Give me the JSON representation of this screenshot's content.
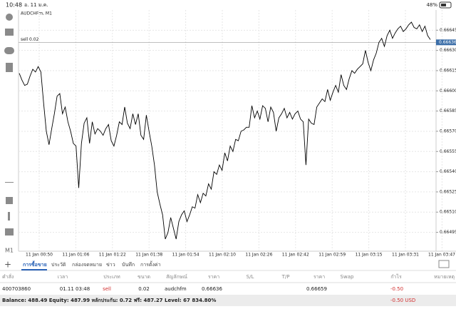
{
  "status_bar": {
    "time": "10:48",
    "date": "อ. 11 ม.ค.",
    "battery": "48%"
  },
  "timeframe": "M1",
  "chart_data": {
    "type": "line",
    "title": "AUDCHFm, M1",
    "color": "#000000",
    "x_labels": [
      "11 Jan 00:50",
      "11 Jan 01:06",
      "11 Jan 01:22",
      "11 Jan 01:38",
      "11 Jan 01:54",
      "11 Jan 02:10",
      "11 Jan 02:26",
      "11 Jan 02:42",
      "11 Jan 02:59",
      "11 Jan 03:15",
      "11 Jan 03:31",
      "11 Jan 03:47"
    ],
    "values": [
      0.66613,
      0.66608,
      0.66604,
      0.66605,
      0.66611,
      0.66616,
      0.66614,
      0.66618,
      0.66614,
      0.66591,
      0.6657,
      0.6656,
      0.66572,
      0.66583,
      0.66596,
      0.66598,
      0.66583,
      0.66588,
      0.66577,
      0.6657,
      0.66561,
      0.66559,
      0.66528,
      0.66561,
      0.66576,
      0.6658,
      0.66561,
      0.66577,
      0.66568,
      0.66572,
      0.6657,
      0.66567,
      0.66572,
      0.66575,
      0.66563,
      0.66559,
      0.66567,
      0.66577,
      0.66575,
      0.66588,
      0.66576,
      0.66572,
      0.66583,
      0.66575,
      0.66583,
      0.66567,
      0.66564,
      0.66582,
      0.6657,
      0.66559,
      0.66545,
      0.66525,
      0.66516,
      0.66508,
      0.6649,
      0.66495,
      0.66506,
      0.66498,
      0.6649,
      0.66503,
      0.66508,
      0.66511,
      0.66503,
      0.66508,
      0.66514,
      0.66513,
      0.66523,
      0.66517,
      0.66524,
      0.66522,
      0.66531,
      0.66527,
      0.6654,
      0.66538,
      0.66545,
      0.66541,
      0.66554,
      0.66548,
      0.66559,
      0.66555,
      0.66564,
      0.66563,
      0.6657,
      0.66571,
      0.66573,
      0.66573,
      0.66589,
      0.6658,
      0.66585,
      0.66579,
      0.66589,
      0.66587,
      0.66577,
      0.66588,
      0.66584,
      0.6657,
      0.6658,
      0.66583,
      0.66587,
      0.6658,
      0.66584,
      0.66579,
      0.66583,
      0.66585,
      0.66579,
      0.66577,
      0.66545,
      0.66579,
      0.66576,
      0.66575,
      0.66588,
      0.66591,
      0.66594,
      0.66592,
      0.66601,
      0.66593,
      0.66599,
      0.66604,
      0.66599,
      0.66612,
      0.66604,
      0.66601,
      0.66609,
      0.66615,
      0.66613,
      0.66616,
      0.66618,
      0.6662,
      0.6663,
      0.66621,
      0.66615,
      0.66623,
      0.66628,
      0.66636,
      0.66639,
      0.66633,
      0.66641,
      0.66645,
      0.66639,
      0.66643,
      0.66646,
      0.66648,
      0.66644,
      0.66646,
      0.66649,
      0.66651,
      0.66647,
      0.66646,
      0.66649,
      0.66644,
      0.66648,
      0.66641,
      0.66638
    ],
    "ylim": [
      0.66481,
      0.6666
    ],
    "yticks": [
      0.66495,
      {
        "value": 0.6651,
        "label": "0.66510"
      },
      0.66525,
      {
        "value": 0.6654,
        "label": "0.66540"
      },
      0.66555,
      {
        "value": 0.6657,
        "label": "0.66570"
      },
      0.66585,
      {
        "value": 0.666,
        "label": "0.66600"
      },
      0.66615,
      {
        "value": 0.6663,
        "label": "0.66630"
      },
      0.66645
    ],
    "grid": true,
    "sell_line": {
      "label": "sell 0.02",
      "value": 0.66636,
      "color": "#3b6ea8"
    }
  },
  "tabs": [
    "การซื้อขาย",
    "ประวัติ",
    "กล่องจดหมาย",
    "ข่าว",
    "บันทึก",
    "การตั้งค่า"
  ],
  "table": {
    "headers": [
      "คำสั่ง",
      "เวลา",
      "ประเภท",
      "ขนาด",
      "สัญลักษณ์",
      "ราคา",
      "S/L",
      "T/P",
      "ราคา",
      "Swap",
      "กำไร",
      "หมายเหตุ"
    ],
    "rows": [
      {
        "order": "400703860",
        "time": "01.11 03:48",
        "type": "sell",
        "size": "0.02",
        "symbol": "audchfm",
        "price": "0.66636",
        "current_price": "0.66659",
        "profit": "-0.50"
      }
    ]
  },
  "summary": {
    "text": "Balance: 488.49 Equity: 487.99 หลักประกัน: 0.72 ฟรี: 487.27 Level: 67 834.80%",
    "profit": "-0.50  USD"
  }
}
